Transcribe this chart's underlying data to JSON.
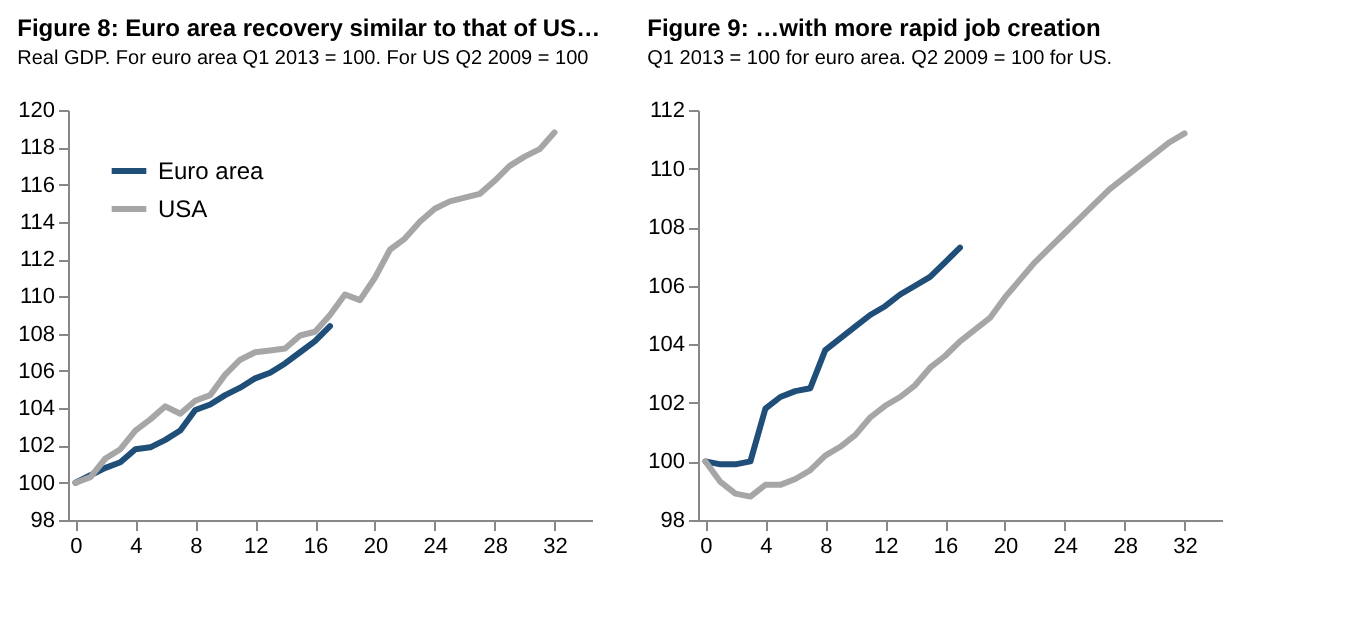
{
  "chart_data": [
    {
      "type": "line",
      "title": "Figure 8: Euro area recovery similar to that of US…",
      "subtitle": "Real GDP. For euro area Q1 2013 = 100. For US Q2 2009 = 100",
      "x": [
        0,
        1,
        2,
        3,
        4,
        5,
        6,
        7,
        8,
        9,
        10,
        11,
        12,
        13,
        14,
        15,
        16,
        17,
        18,
        19,
        20,
        21,
        22,
        23,
        24,
        25,
        26,
        27,
        28,
        29,
        30,
        31,
        32
      ],
      "xlim": [
        -0.5,
        34.5
      ],
      "xticks": [
        0,
        4,
        8,
        12,
        16,
        20,
        24,
        28,
        32
      ],
      "ylim": [
        98,
        120
      ],
      "yticks": [
        98,
        100,
        102,
        104,
        106,
        108,
        110,
        112,
        114,
        116,
        118,
        120
      ],
      "grid": false,
      "legend": "top left",
      "series": [
        {
          "name": "Euro area",
          "color": "#1f4e79",
          "x": [
            0,
            1,
            2,
            3,
            4,
            5,
            6,
            7,
            8,
            9,
            10,
            11,
            12,
            13,
            14,
            15,
            16,
            17
          ],
          "values": [
            100,
            100.4,
            100.8,
            101.1,
            101.8,
            101.9,
            102.3,
            102.8,
            103.9,
            104.2,
            104.7,
            105.1,
            105.6,
            105.9,
            106.4,
            107.0,
            107.6,
            108.4
          ]
        },
        {
          "name": "USA",
          "color": "#a6a6a6",
          "values": [
            100,
            100.3,
            101.3,
            101.8,
            102.8,
            103.4,
            104.1,
            103.7,
            104.4,
            104.7,
            105.8,
            106.6,
            107.0,
            107.1,
            107.2,
            107.9,
            108.1,
            109.0,
            110.1,
            109.8,
            111.0,
            112.5,
            113.1,
            114.0,
            114.7,
            115.1,
            115.3,
            115.5,
            116.2,
            117.0,
            117.5,
            117.9,
            118.8
          ]
        }
      ]
    },
    {
      "type": "line",
      "title": "Figure 9: …with more rapid job creation",
      "subtitle": "Q1 2013 = 100 for euro area. Q2 2009 = 100 for US.",
      "x": [
        0,
        1,
        2,
        3,
        4,
        5,
        6,
        7,
        8,
        9,
        10,
        11,
        12,
        13,
        14,
        15,
        16,
        17,
        18,
        19,
        20,
        21,
        22,
        23,
        24,
        25,
        26,
        27,
        28,
        29,
        30,
        31,
        32
      ],
      "xlim": [
        -0.5,
        34.5
      ],
      "xticks": [
        0,
        4,
        8,
        12,
        16,
        20,
        24,
        28,
        32
      ],
      "ylim": [
        98,
        112
      ],
      "yticks": [
        98,
        100,
        102,
        104,
        106,
        108,
        110,
        112
      ],
      "grid": false,
      "legend": "top left",
      "series": [
        {
          "name": "Euro area",
          "color": "#1f4e79",
          "x": [
            0,
            1,
            2,
            3,
            4,
            5,
            6,
            7,
            8,
            9,
            10,
            11,
            12,
            13,
            14,
            15,
            16,
            17
          ],
          "values": [
            100,
            99.9,
            99.9,
            100.0,
            101.8,
            102.2,
            102.4,
            102.5,
            103.8,
            104.2,
            104.6,
            105.0,
            105.3,
            105.7,
            106.0,
            106.3,
            106.8,
            107.3
          ]
        },
        {
          "name": "USA",
          "color": "#a6a6a6",
          "values": [
            100,
            99.3,
            98.9,
            98.8,
            99.2,
            99.2,
            99.4,
            99.7,
            100.2,
            100.5,
            100.9,
            101.5,
            101.9,
            102.2,
            102.6,
            103.2,
            103.6,
            104.1,
            104.5,
            104.9,
            105.6,
            106.2,
            106.8,
            107.3,
            107.8,
            108.3,
            108.8,
            109.3,
            109.7,
            110.1,
            110.5,
            110.9,
            111.2
          ]
        }
      ]
    }
  ]
}
